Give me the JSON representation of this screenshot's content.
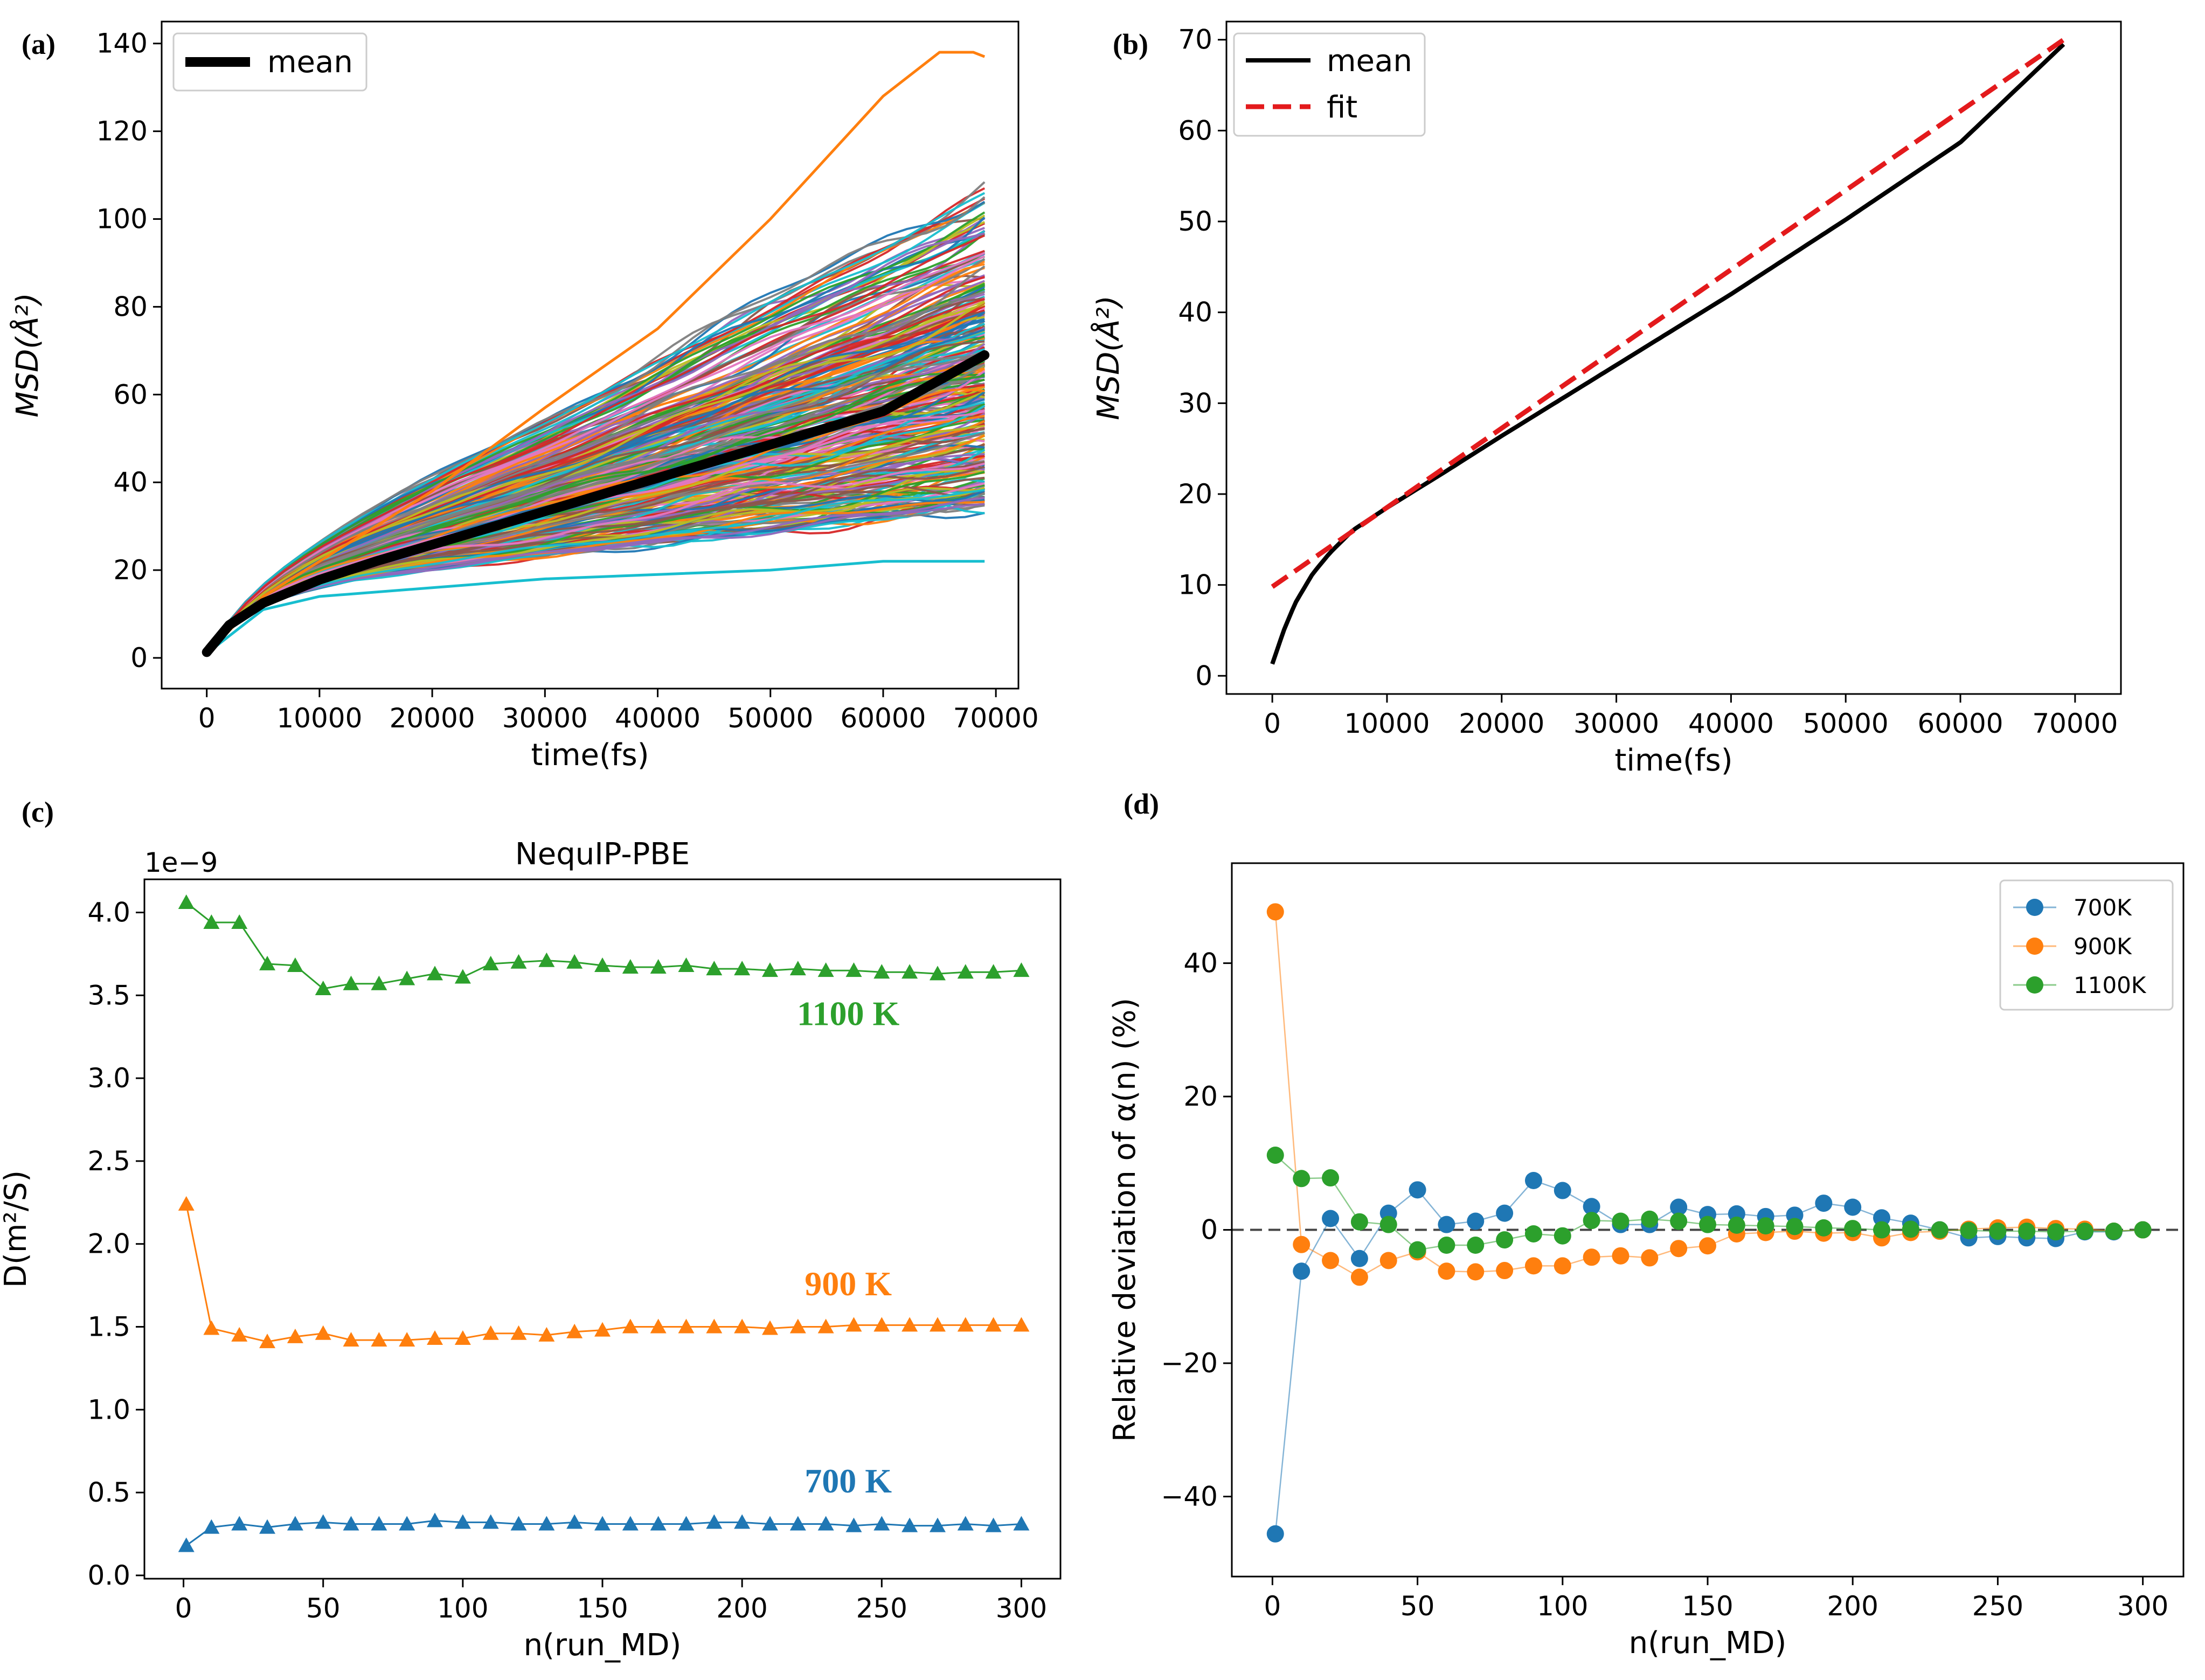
{
  "panel_labels": [
    "(a)",
    "(b)",
    "(c)",
    "(d)"
  ],
  "colors": {
    "c700": "#1f77b4",
    "c900": "#ff7f0e",
    "c1100": "#2ca02c",
    "mean": "#000000",
    "fit": "#e31a1c",
    "palette": [
      "#1f77b4",
      "#ff7f0e",
      "#2ca02c",
      "#d62728",
      "#9467bd",
      "#8c564b",
      "#e377c2",
      "#7f7f7f",
      "#bcbd22",
      "#17becf"
    ]
  },
  "chart_data": [
    {
      "id": "a",
      "type": "line",
      "title": "",
      "xlabel": "time(fs)",
      "ylabel": "MSD(Å²)",
      "xlim": [
        -4000,
        72000
      ],
      "ylim": [
        -7,
        145
      ],
      "xticks": [
        0,
        10000,
        20000,
        30000,
        40000,
        50000,
        60000,
        70000
      ],
      "yticks": [
        0,
        20,
        40,
        60,
        80,
        100,
        120,
        140
      ],
      "legend": {
        "position": "top-left",
        "entries": [
          "mean"
        ]
      },
      "mean_curve": {
        "name": "mean",
        "x": [
          0,
          2000,
          5000,
          10000,
          15000,
          20000,
          30000,
          40000,
          50000,
          60000,
          69000
        ],
        "y": [
          1.3,
          7.5,
          12.5,
          17.8,
          22.0,
          25.8,
          33.4,
          41.0,
          48.6,
          56.2,
          69.0
        ]
      },
      "individual_runs": {
        "count": 300,
        "x_end": 69000,
        "endpoint_range": [
          22,
          138
        ],
        "highlighted": [
          {
            "x": [
              0,
              5000,
              10000,
              20000,
              30000,
              40000,
              50000,
              60000,
              65000,
              68000,
              69000
            ],
            "y": [
              1,
              14,
              22,
              38,
              57,
              75,
              100,
              128,
              138,
              138,
              137
            ]
          },
          {
            "x": [
              0,
              5000,
              10000,
              20000,
              30000,
              40000,
              50000,
              60000,
              69000
            ],
            "y": [
              1,
              11,
              14,
              16,
              18,
              19,
              20,
              22,
              22
            ]
          }
        ]
      }
    },
    {
      "id": "b",
      "type": "line",
      "title": "",
      "xlabel": "time(fs)",
      "ylabel": "MSD(Å²)",
      "xlim": [
        -4000,
        74000
      ],
      "ylim": [
        -2,
        72
      ],
      "xticks": [
        0,
        10000,
        20000,
        30000,
        40000,
        50000,
        60000,
        70000
      ],
      "yticks": [
        0,
        10,
        20,
        30,
        40,
        50,
        60,
        70
      ],
      "legend": {
        "position": "top-left",
        "entries": [
          "mean",
          "fit"
        ]
      },
      "series": [
        {
          "name": "mean",
          "style": "solid",
          "x": [
            0,
            1000,
            2000,
            3500,
            5000,
            7000,
            10000,
            15000,
            20000,
            30000,
            40000,
            50000,
            60000,
            69000
          ],
          "y": [
            1.3,
            5.0,
            8.0,
            11.2,
            13.5,
            16.0,
            18.5,
            22.4,
            26.4,
            34.2,
            42.0,
            50.2,
            58.7,
            69.5
          ]
        },
        {
          "name": "fit",
          "style": "dashed",
          "x": [
            0,
            69000
          ],
          "y": [
            9.8,
            70.0
          ]
        }
      ]
    },
    {
      "id": "c",
      "type": "line",
      "title": "NequIP-PBE",
      "xlabel": "n(run_MD)",
      "ylabel": "D(m²/S)",
      "offset_text": "1e−9",
      "xlim": [
        -14,
        314
      ],
      "ylim": [
        -0.02,
        4.2
      ],
      "xticks": [
        0,
        50,
        100,
        150,
        200,
        250,
        300
      ],
      "yticks": [
        0.0,
        0.5,
        1.0,
        1.5,
        2.0,
        2.5,
        3.0,
        3.5,
        4.0
      ],
      "yticklabels": [
        "0.0",
        "0.5",
        "1.0",
        "1.5",
        "2.0",
        "2.5",
        "3.0",
        "3.5",
        "4.0"
      ],
      "marker": "triangle",
      "annotations": [
        {
          "text": "1100 K",
          "series": "1100 K",
          "x": 238,
          "y": 3.32
        },
        {
          "text": "900 K",
          "series": "900 K",
          "x": 238,
          "y": 1.69
        },
        {
          "text": "700 K",
          "series": "700 K",
          "x": 238,
          "y": 0.5
        }
      ],
      "x": [
        1,
        10,
        20,
        30,
        40,
        50,
        60,
        70,
        80,
        90,
        100,
        110,
        120,
        130,
        140,
        150,
        160,
        170,
        180,
        190,
        200,
        210,
        220,
        230,
        240,
        250,
        260,
        270,
        280,
        290,
        300
      ],
      "series": [
        {
          "name": "1100 K",
          "color_key": "c1100",
          "values": [
            4.06,
            3.94,
            3.94,
            3.69,
            3.68,
            3.54,
            3.57,
            3.57,
            3.6,
            3.63,
            3.61,
            3.69,
            3.7,
            3.71,
            3.7,
            3.68,
            3.67,
            3.67,
            3.68,
            3.66,
            3.66,
            3.65,
            3.66,
            3.65,
            3.65,
            3.64,
            3.64,
            3.63,
            3.64,
            3.64,
            3.65
          ]
        },
        {
          "name": "900 K",
          "color_key": "c900",
          "values": [
            2.24,
            1.49,
            1.45,
            1.41,
            1.44,
            1.46,
            1.42,
            1.42,
            1.42,
            1.43,
            1.43,
            1.46,
            1.46,
            1.45,
            1.47,
            1.48,
            1.5,
            1.5,
            1.5,
            1.5,
            1.5,
            1.49,
            1.5,
            1.5,
            1.51,
            1.51,
            1.51,
            1.51,
            1.51,
            1.51,
            1.51
          ]
        },
        {
          "name": "700 K",
          "color_key": "c700",
          "values": [
            0.18,
            0.29,
            0.31,
            0.29,
            0.31,
            0.32,
            0.31,
            0.31,
            0.31,
            0.33,
            0.32,
            0.32,
            0.31,
            0.31,
            0.32,
            0.31,
            0.31,
            0.31,
            0.31,
            0.32,
            0.32,
            0.31,
            0.31,
            0.31,
            0.3,
            0.31,
            0.3,
            0.3,
            0.31,
            0.3,
            0.31
          ]
        }
      ]
    },
    {
      "id": "d",
      "type": "line",
      "title": "",
      "xlabel": "n(run_MD)",
      "ylabel": "Relative deviation of α(n) (%)",
      "xlim": [
        -14,
        314
      ],
      "ylim": [
        -52,
        55
      ],
      "xticks": [
        0,
        50,
        100,
        150,
        200,
        250,
        300
      ],
      "yticks": [
        -40,
        -20,
        0,
        20,
        40
      ],
      "yticklabels": [
        "−40",
        "−20",
        "0",
        "20",
        "40"
      ],
      "marker": "circle",
      "reference_line": {
        "y": 0,
        "style": "dashed"
      },
      "legend": {
        "position": "top-right",
        "entries": [
          "700K",
          "900K",
          "1100K"
        ]
      },
      "x": [
        1,
        10,
        20,
        30,
        40,
        50,
        60,
        70,
        80,
        90,
        100,
        110,
        120,
        130,
        140,
        150,
        160,
        170,
        180,
        190,
        200,
        210,
        220,
        230,
        240,
        250,
        260,
        270,
        280,
        290,
        300
      ],
      "series": [
        {
          "name": "700K",
          "color_key": "c700",
          "values": [
            -45.6,
            -6.2,
            1.7,
            -4.3,
            2.5,
            6.0,
            0.8,
            1.3,
            2.5,
            7.4,
            5.9,
            3.5,
            0.8,
            0.8,
            3.4,
            2.3,
            2.4,
            2.0,
            2.2,
            4.0,
            3.4,
            1.8,
            1.0,
            0.0,
            -1.2,
            -1.0,
            -1.2,
            -1.3,
            -0.3,
            -0.3,
            0.0
          ]
        },
        {
          "name": "900K",
          "color_key": "c900",
          "values": [
            47.7,
            -2.2,
            -4.6,
            -7.1,
            -4.6,
            -3.3,
            -6.2,
            -6.3,
            -6.1,
            -5.4,
            -5.4,
            -4.1,
            -3.9,
            -4.2,
            -2.8,
            -2.4,
            -0.6,
            -0.4,
            -0.2,
            -0.5,
            -0.4,
            -1.2,
            -0.4,
            -0.2,
            0.1,
            0.3,
            0.4,
            0.2,
            0.1,
            -0.2,
            0.0
          ]
        },
        {
          "name": "1100K",
          "color_key": "c1100",
          "values": [
            11.2,
            7.7,
            7.8,
            1.2,
            0.8,
            -3.0,
            -2.3,
            -2.3,
            -1.5,
            -0.6,
            -0.9,
            1.4,
            1.3,
            1.6,
            1.3,
            0.8,
            0.7,
            0.6,
            0.5,
            0.3,
            0.2,
            0.0,
            0.1,
            0.0,
            -0.1,
            -0.2,
            -0.2,
            -0.3,
            -0.2,
            -0.2,
            0.0
          ]
        }
      ]
    }
  ]
}
